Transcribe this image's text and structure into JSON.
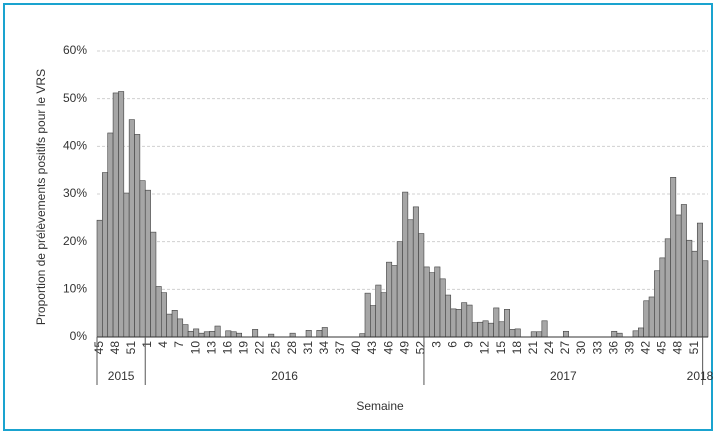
{
  "chart_data": {
    "type": "bar",
    "y_label": "Proportion de prélèvements positifs pour le VRS",
    "x_label": "Semaine",
    "categories": [
      "45",
      null,
      null,
      "48",
      null,
      null,
      "51",
      null,
      null,
      "1",
      null,
      null,
      "4",
      null,
      null,
      "7",
      null,
      null,
      "10",
      null,
      null,
      "13",
      null,
      null,
      "16",
      null,
      null,
      "19",
      null,
      null,
      "22",
      null,
      null,
      "25",
      null,
      null,
      "28",
      null,
      null,
      "31",
      null,
      null,
      "34",
      null,
      null,
      "37",
      null,
      null,
      "40",
      null,
      null,
      "43",
      null,
      null,
      "46",
      null,
      null,
      "49",
      null,
      null,
      "52",
      null,
      null,
      "3",
      null,
      null,
      "6",
      null,
      null,
      "9",
      null,
      null,
      "12",
      null,
      null,
      "15",
      null,
      null,
      "18",
      null,
      null,
      "21",
      null,
      null,
      "24",
      null,
      null,
      "27",
      null,
      null,
      "30",
      null,
      null,
      "33",
      null,
      null,
      "36",
      null,
      null,
      "39",
      null,
      null,
      "42",
      null,
      null,
      "45",
      null,
      null,
      "48",
      null,
      null,
      "51",
      null,
      null
    ],
    "x_groups": [
      {
        "label": "2015",
        "size": 9
      },
      {
        "label": "2016",
        "size": 52
      },
      {
        "label": "2017",
        "size": 52
      },
      {
        "label": "2018",
        "size": 1
      }
    ],
    "values": [
      24.5,
      34.5,
      42.8,
      51.2,
      51.5,
      30.2,
      45.6,
      42.5,
      32.8,
      30.8,
      22,
      10.6,
      9.3,
      4.8,
      5.6,
      3.8,
      2.6,
      1.2,
      1.7,
      0.8,
      1.1,
      1.2,
      2.3,
      0,
      1.3,
      1.1,
      0.8,
      0,
      0,
      1.6,
      0,
      0,
      0.6,
      0,
      0,
      0,
      0.8,
      0,
      0,
      1.4,
      0,
      1.4,
      2,
      0,
      0,
      0,
      0,
      0,
      0,
      0.7,
      9.2,
      6.6,
      10.9,
      9.3,
      15.7,
      15,
      20,
      30.4,
      24.6,
      27.3,
      21.7,
      14.7,
      13.5,
      14.7,
      12.2,
      8.8,
      5.9,
      5.8,
      7.2,
      6.7,
      3,
      3.1,
      3.4,
      2.9,
      6.1,
      3.2,
      5.8,
      1.6,
      1.7,
      0,
      0,
      1.1,
      1.1,
      3.4,
      0,
      0,
      0,
      1.2,
      0,
      0,
      0,
      0,
      0,
      0,
      0,
      0,
      1.2,
      0.8,
      0,
      0,
      1.3,
      1.9,
      7.6,
      8.4,
      13.9,
      16.6,
      20.6,
      33.5,
      25.6,
      27.8,
      20.3,
      18,
      23.9,
      16
    ],
    "color": "#a6a6a6",
    "ylim": [
      0,
      60
    ],
    "yticks": [
      {
        "value": 0,
        "label": "0%"
      },
      {
        "value": 10,
        "label": "10%"
      },
      {
        "value": 20,
        "label": "20%"
      },
      {
        "value": 30,
        "label": "30%"
      },
      {
        "value": 40,
        "label": "40%"
      },
      {
        "value": 50,
        "label": "50%"
      },
      {
        "value": 60,
        "label": "60%"
      }
    ],
    "grid": true
  }
}
